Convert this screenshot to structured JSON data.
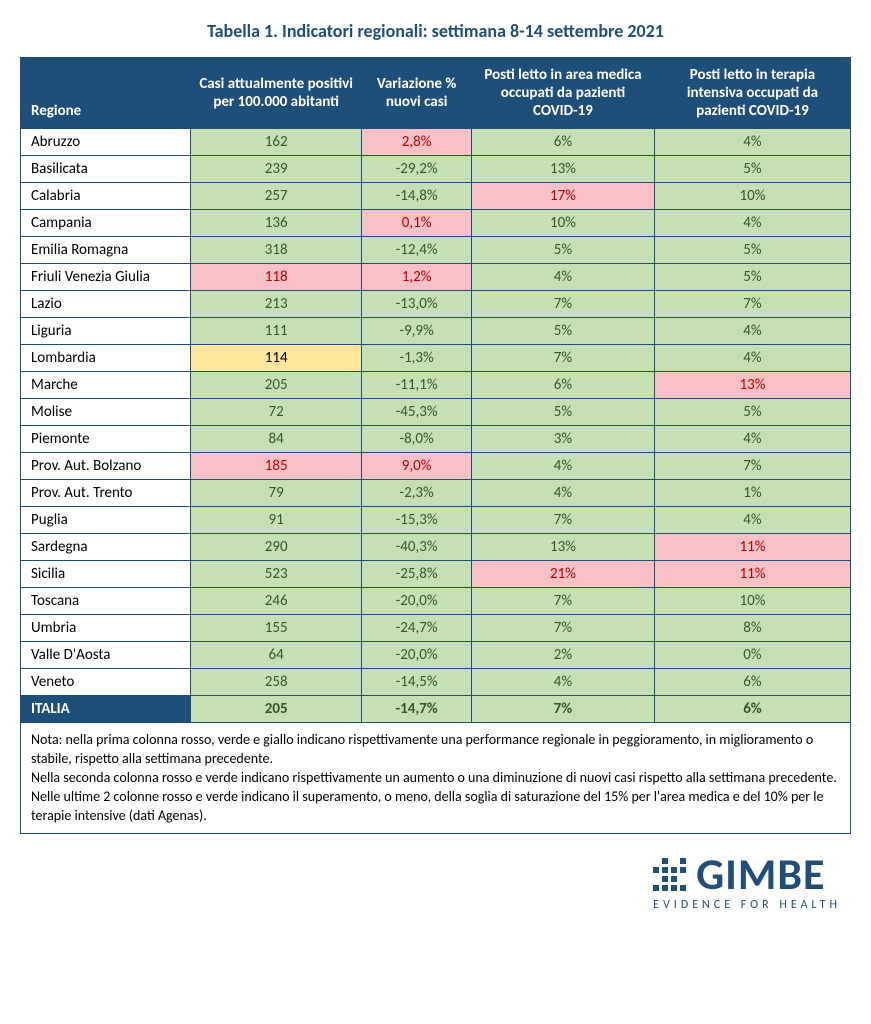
{
  "colors": {
    "header_bg": "#1f4e79",
    "header_text": "#ffffff",
    "title_color": "#1f4e79",
    "green": "#c5e0b4",
    "red": "#f8c1c7",
    "yellow": "#ffe699",
    "red_text": "#c00000",
    "green_text": "#385723",
    "black_text": "#000000",
    "border": "#1f4e79"
  },
  "title": "Tabella 1. Indicatori regionali: settimana 8-14 settembre 2021",
  "columns": [
    "Regione",
    "Casi attualmente positivi per 100.000 abitanti",
    "Variazione % nuovi casi",
    "Posti letto in area medica occupati da pazienti COVID-19",
    "Posti letto in terapia intensiva occupati da pazienti COVID-19"
  ],
  "rows": [
    {
      "region": "Abruzzo",
      "cells": [
        {
          "v": "162",
          "bg": "green"
        },
        {
          "v": "2,8%",
          "bg": "red",
          "tc": "red"
        },
        {
          "v": "6%",
          "bg": "green"
        },
        {
          "v": "4%",
          "bg": "green"
        }
      ]
    },
    {
      "region": "Basilicata",
      "cells": [
        {
          "v": "239",
          "bg": "green"
        },
        {
          "v": "-29,2%",
          "bg": "green"
        },
        {
          "v": "13%",
          "bg": "green"
        },
        {
          "v": "5%",
          "bg": "green"
        }
      ]
    },
    {
      "region": "Calabria",
      "cells": [
        {
          "v": "257",
          "bg": "green"
        },
        {
          "v": "-14,8%",
          "bg": "green"
        },
        {
          "v": "17%",
          "bg": "red",
          "tc": "red"
        },
        {
          "v": "10%",
          "bg": "green"
        }
      ]
    },
    {
      "region": "Campania",
      "cells": [
        {
          "v": "136",
          "bg": "green"
        },
        {
          "v": "0,1%",
          "bg": "red",
          "tc": "red"
        },
        {
          "v": "10%",
          "bg": "green"
        },
        {
          "v": "4%",
          "bg": "green"
        }
      ]
    },
    {
      "region": "Emilia Romagna",
      "cells": [
        {
          "v": "318",
          "bg": "green"
        },
        {
          "v": "-12,4%",
          "bg": "green"
        },
        {
          "v": "5%",
          "bg": "green"
        },
        {
          "v": "5%",
          "bg": "green"
        }
      ]
    },
    {
      "region": "Friuli Venezia Giulia",
      "cells": [
        {
          "v": "118",
          "bg": "red",
          "tc": "red"
        },
        {
          "v": "1,2%",
          "bg": "red",
          "tc": "red"
        },
        {
          "v": "4%",
          "bg": "green"
        },
        {
          "v": "5%",
          "bg": "green"
        }
      ]
    },
    {
      "region": "Lazio",
      "cells": [
        {
          "v": "213",
          "bg": "green"
        },
        {
          "v": "-13,0%",
          "bg": "green"
        },
        {
          "v": "7%",
          "bg": "green"
        },
        {
          "v": "7%",
          "bg": "green"
        }
      ]
    },
    {
      "region": "Liguria",
      "cells": [
        {
          "v": "111",
          "bg": "green"
        },
        {
          "v": "-9,9%",
          "bg": "green"
        },
        {
          "v": "5%",
          "bg": "green"
        },
        {
          "v": "4%",
          "bg": "green"
        }
      ]
    },
    {
      "region": "Lombardia",
      "cells": [
        {
          "v": "114",
          "bg": "yellow",
          "tc": "black"
        },
        {
          "v": "-1,3%",
          "bg": "green"
        },
        {
          "v": "7%",
          "bg": "green"
        },
        {
          "v": "4%",
          "bg": "green"
        }
      ]
    },
    {
      "region": "Marche",
      "cells": [
        {
          "v": "205",
          "bg": "green"
        },
        {
          "v": "-11,1%",
          "bg": "green"
        },
        {
          "v": "6%",
          "bg": "green"
        },
        {
          "v": "13%",
          "bg": "red",
          "tc": "red"
        }
      ]
    },
    {
      "region": "Molise",
      "cells": [
        {
          "v": "72",
          "bg": "green"
        },
        {
          "v": "-45,3%",
          "bg": "green"
        },
        {
          "v": "5%",
          "bg": "green"
        },
        {
          "v": "5%",
          "bg": "green"
        }
      ]
    },
    {
      "region": "Piemonte",
      "cells": [
        {
          "v": "84",
          "bg": "green"
        },
        {
          "v": "-8,0%",
          "bg": "green"
        },
        {
          "v": "3%",
          "bg": "green"
        },
        {
          "v": "4%",
          "bg": "green"
        }
      ]
    },
    {
      "region": "Prov. Aut. Bolzano",
      "cells": [
        {
          "v": "185",
          "bg": "red",
          "tc": "red"
        },
        {
          "v": "9,0%",
          "bg": "red",
          "tc": "red"
        },
        {
          "v": "4%",
          "bg": "green"
        },
        {
          "v": "7%",
          "bg": "green"
        }
      ]
    },
    {
      "region": "Prov. Aut. Trento",
      "cells": [
        {
          "v": "79",
          "bg": "green"
        },
        {
          "v": "-2,3%",
          "bg": "green"
        },
        {
          "v": "4%",
          "bg": "green"
        },
        {
          "v": "1%",
          "bg": "green"
        }
      ]
    },
    {
      "region": "Puglia",
      "cells": [
        {
          "v": "91",
          "bg": "green"
        },
        {
          "v": "-15,3%",
          "bg": "green"
        },
        {
          "v": "7%",
          "bg": "green"
        },
        {
          "v": "4%",
          "bg": "green"
        }
      ]
    },
    {
      "region": "Sardegna",
      "cells": [
        {
          "v": "290",
          "bg": "green"
        },
        {
          "v": "-40,3%",
          "bg": "green"
        },
        {
          "v": "13%",
          "bg": "green"
        },
        {
          "v": "11%",
          "bg": "red",
          "tc": "red"
        }
      ]
    },
    {
      "region": "Sicilia",
      "cells": [
        {
          "v": "523",
          "bg": "green"
        },
        {
          "v": "-25,8%",
          "bg": "green"
        },
        {
          "v": "21%",
          "bg": "red",
          "tc": "red"
        },
        {
          "v": "11%",
          "bg": "red",
          "tc": "red"
        }
      ]
    },
    {
      "region": "Toscana",
      "cells": [
        {
          "v": "246",
          "bg": "green"
        },
        {
          "v": "-20,0%",
          "bg": "green"
        },
        {
          "v": "7%",
          "bg": "green"
        },
        {
          "v": "10%",
          "bg": "green"
        }
      ]
    },
    {
      "region": "Umbria",
      "cells": [
        {
          "v": "155",
          "bg": "green"
        },
        {
          "v": "-24,7%",
          "bg": "green"
        },
        {
          "v": "7%",
          "bg": "green"
        },
        {
          "v": "8%",
          "bg": "green"
        }
      ]
    },
    {
      "region": "Valle D'Aosta",
      "cells": [
        {
          "v": "64",
          "bg": "green"
        },
        {
          "v": "-20,0%",
          "bg": "green"
        },
        {
          "v": "2%",
          "bg": "green"
        },
        {
          "v": "0%",
          "bg": "green"
        }
      ]
    },
    {
      "region": "Veneto",
      "cells": [
        {
          "v": "258",
          "bg": "green"
        },
        {
          "v": "-14,5%",
          "bg": "green"
        },
        {
          "v": "4%",
          "bg": "green"
        },
        {
          "v": "6%",
          "bg": "green"
        }
      ]
    }
  ],
  "total": {
    "region": "ITALIA",
    "cells": [
      {
        "v": "205",
        "bg": "green"
      },
      {
        "v": "-14,7%",
        "bg": "green"
      },
      {
        "v": "7%",
        "bg": "green"
      },
      {
        "v": "6%",
        "bg": "green"
      }
    ]
  },
  "note": "Nota: nella prima colonna rosso, verde e giallo indicano rispettivamente una performance regionale in peggioramento, in miglioramento o stabile, rispetto alla settimana precedente.\nNella seconda colonna rosso e verde indicano rispettivamente un aumento o una diminuzione di nuovi casi rispetto alla settimana precedente.\nNelle ultime 2 colonne rosso e verde indicano il superamento, o meno, della soglia di saturazione del 15% per l'area medica e del 10% per le terapie intensive (dati Agenas).",
  "logo": {
    "text": "GIMBE",
    "sub": "EVIDENCE FOR HEALTH"
  }
}
